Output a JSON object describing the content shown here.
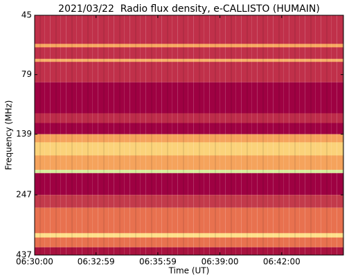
{
  "chart_data": {
    "type": "spectrogram",
    "title": "2021/03/22  Radio flux density, e-CALLISTO (HUMAIN)",
    "x_label": "Time (UT)",
    "y_label": "Frequency (MHz)",
    "xlim": [
      0,
      900
    ],
    "xticks": [
      {
        "value": 0,
        "label": "06:30:00"
      },
      {
        "value": 179,
        "label": "06:32:59"
      },
      {
        "value": 359,
        "label": "06:35:59"
      },
      {
        "value": 540,
        "label": "06:39:00"
      },
      {
        "value": 720,
        "label": "06:42:00"
      }
    ],
    "ylim": [
      45,
      437
    ],
    "y_scale": "log",
    "y_inverted": true,
    "yticks": [
      45,
      79,
      139,
      247,
      437
    ],
    "bands": [
      {
        "from": 45,
        "to": 85,
        "color": "#c0304a"
      },
      {
        "from": 59,
        "to": 61,
        "color": "#f7a861"
      },
      {
        "from": 68,
        "to": 70,
        "color": "#f6b06a"
      },
      {
        "from": 85,
        "to": 114,
        "color": "#9e0142"
      },
      {
        "from": 114,
        "to": 125,
        "color": "#bd2c4a"
      },
      {
        "from": 125,
        "to": 139,
        "color": "#9e0142"
      },
      {
        "from": 139,
        "to": 195,
        "color": "#f5a35c"
      },
      {
        "from": 150,
        "to": 170,
        "color": "#fbd27a"
      },
      {
        "from": 195,
        "to": 201,
        "color": "#d6ee9b"
      },
      {
        "from": 201,
        "to": 247,
        "color": "#9e0142"
      },
      {
        "from": 247,
        "to": 279,
        "color": "#c33a4b"
      },
      {
        "from": 279,
        "to": 406,
        "color": "#e8714f"
      },
      {
        "from": 355,
        "to": 370,
        "color": "#fee08b"
      },
      {
        "from": 406,
        "to": 437,
        "color": "#a8123f"
      }
    ]
  }
}
